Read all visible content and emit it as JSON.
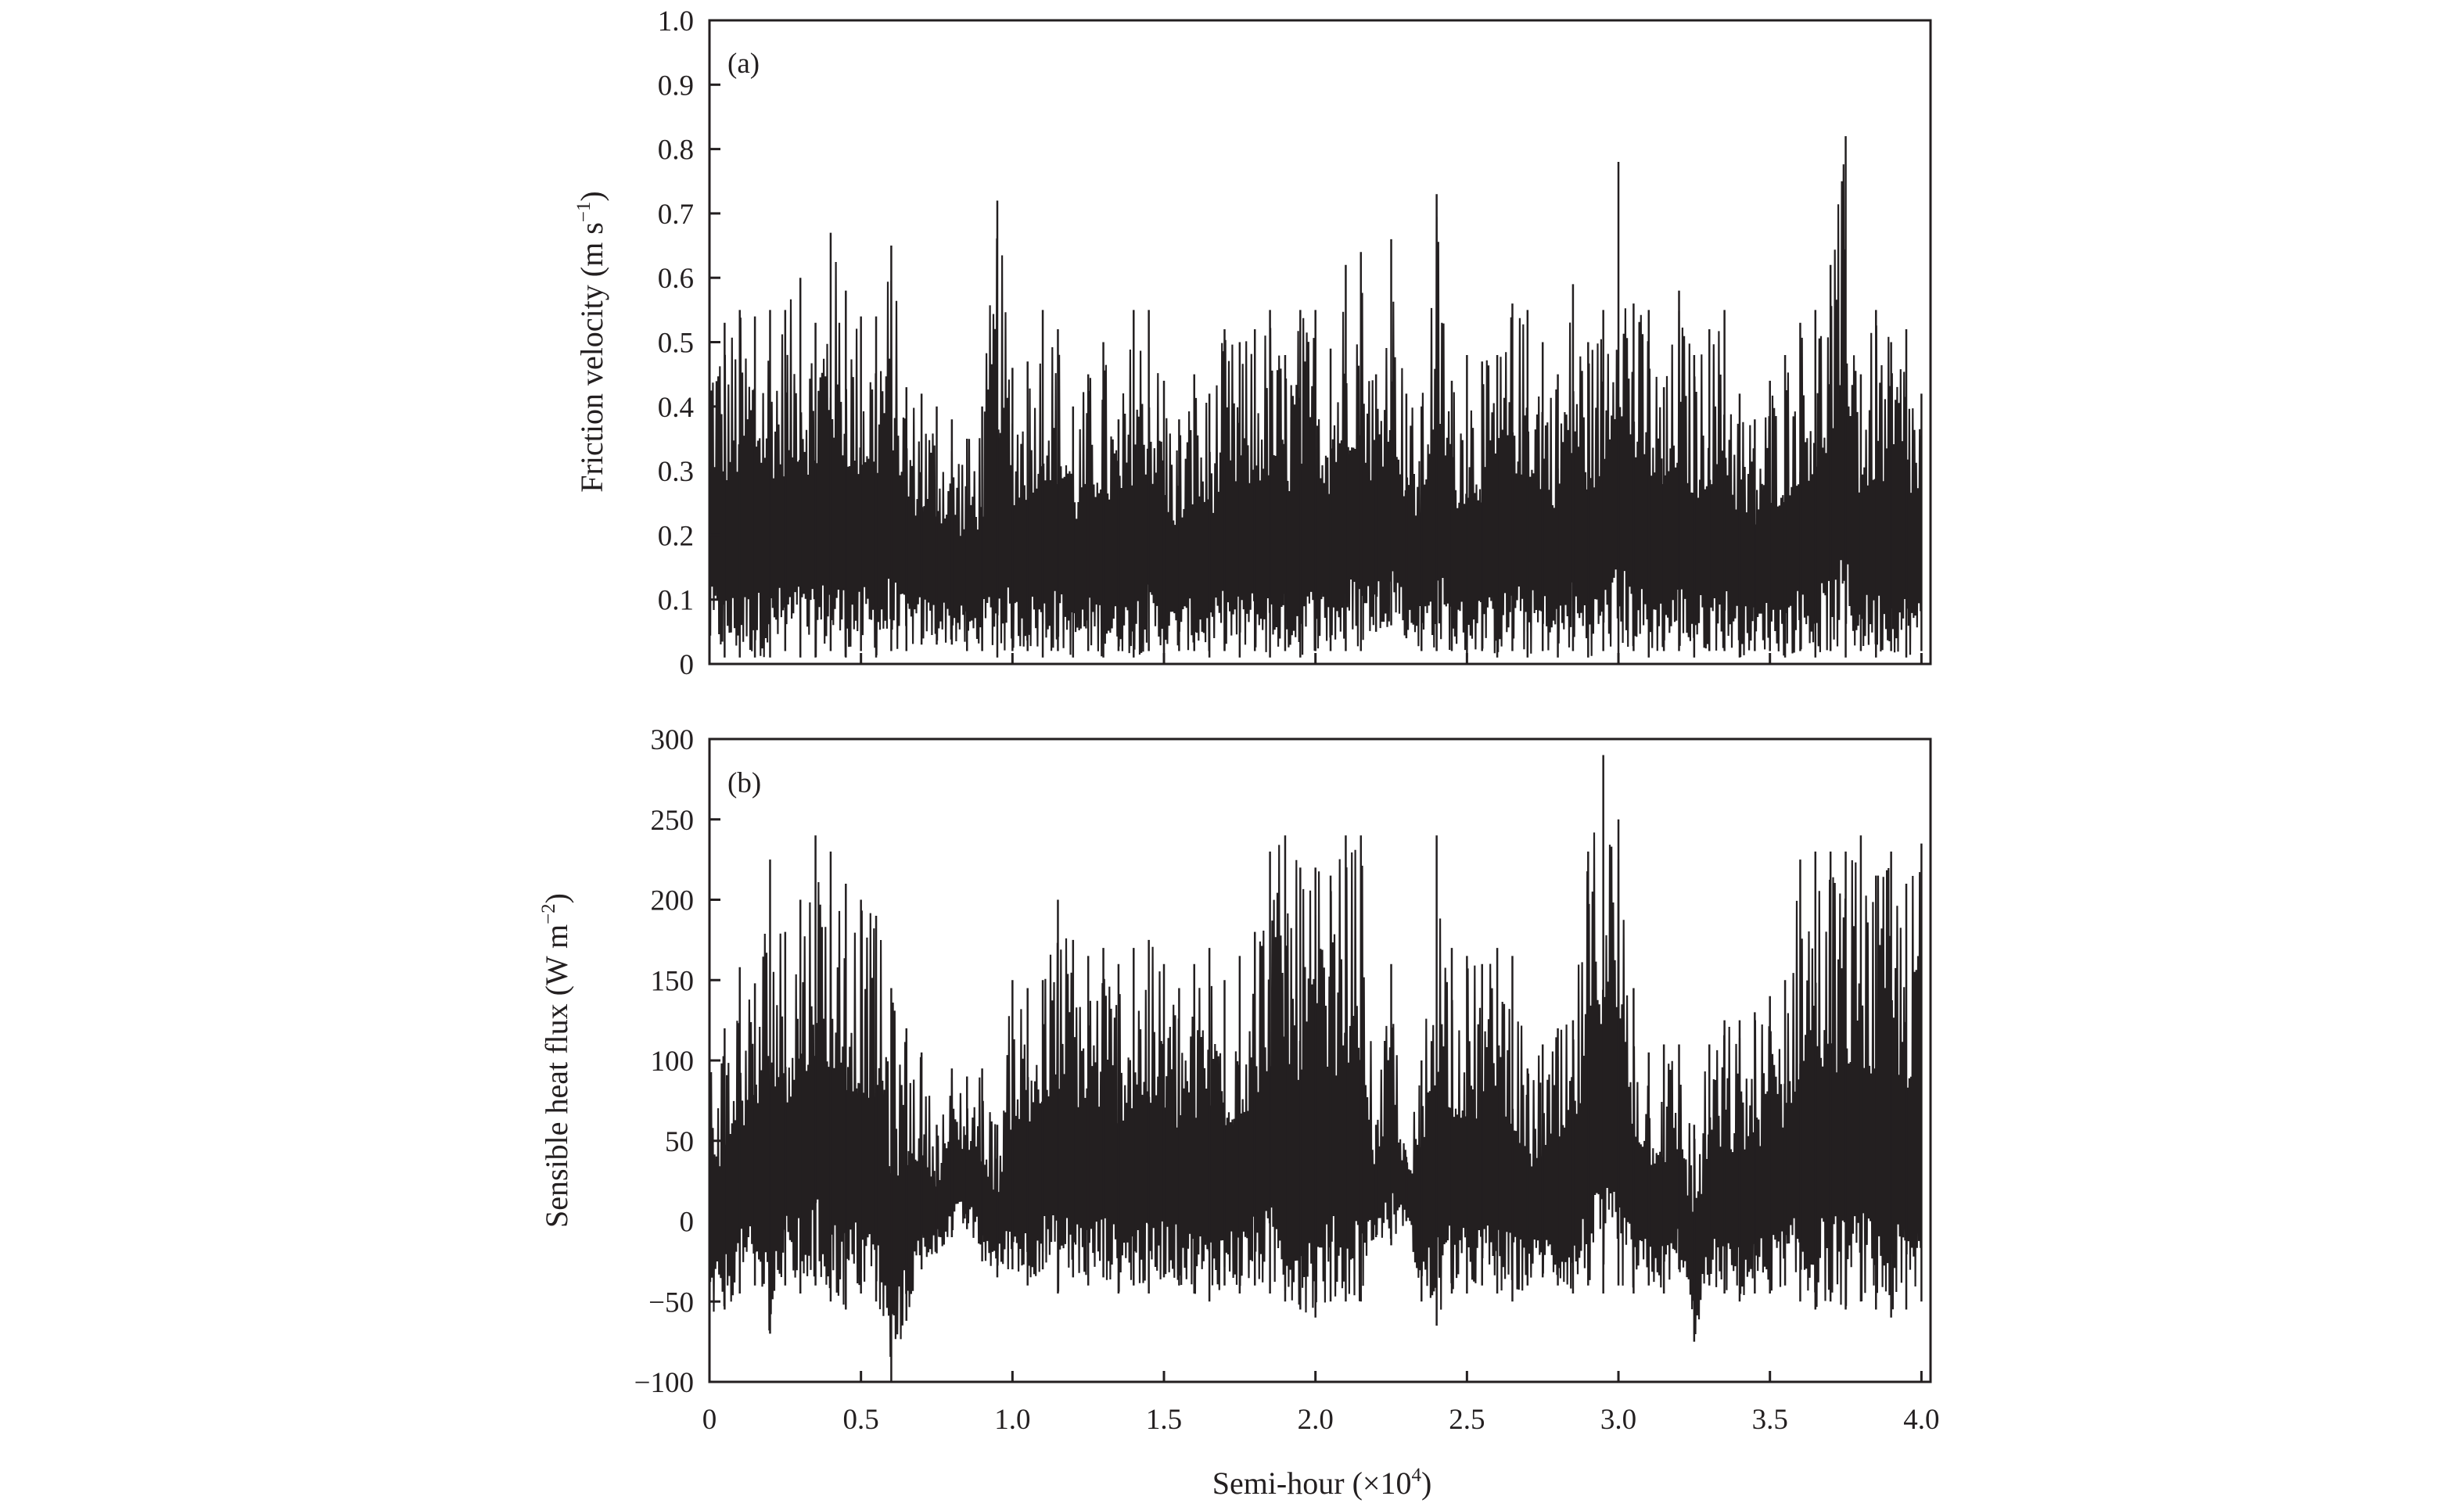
{
  "chart_data": [
    {
      "type": "line",
      "panel_label": "(a)",
      "ylabel": {
        "text": "Friction velocity (m s",
        "sup": "−1",
        "tail": ")"
      },
      "xlim": [
        0,
        4.03
      ],
      "ylim": [
        0,
        1.0
      ],
      "x_ticks": [
        0,
        0.5,
        1.0,
        1.5,
        2.0,
        2.5,
        3.0,
        3.5,
        4.0
      ],
      "y_ticks": [
        0,
        0.1,
        0.2,
        0.3,
        0.4,
        0.5,
        0.6,
        0.7,
        0.8,
        0.9,
        1.0
      ],
      "y_tick_labels": [
        "0",
        "0.1",
        "0.2",
        "0.3",
        "0.4",
        "0.5",
        "0.6",
        "0.7",
        "0.8",
        "0.9",
        "1.0"
      ],
      "series_color": "#231f20",
      "grid": false,
      "series_x": [
        0.0,
        0.05,
        0.1,
        0.15,
        0.2,
        0.25,
        0.3,
        0.35,
        0.4,
        0.45,
        0.5,
        0.55,
        0.6,
        0.65,
        0.7,
        0.75,
        0.8,
        0.85,
        0.9,
        0.95,
        1.0,
        1.05,
        1.1,
        1.15,
        1.2,
        1.25,
        1.3,
        1.35,
        1.4,
        1.45,
        1.5,
        1.55,
        1.6,
        1.65,
        1.7,
        1.75,
        1.8,
        1.85,
        1.9,
        1.95,
        2.0,
        2.05,
        2.1,
        2.15,
        2.2,
        2.25,
        2.3,
        2.35,
        2.4,
        2.45,
        2.5,
        2.55,
        2.6,
        2.65,
        2.7,
        2.75,
        2.8,
        2.85,
        2.9,
        2.95,
        3.0,
        3.05,
        3.1,
        3.15,
        3.2,
        3.25,
        3.3,
        3.35,
        3.4,
        3.45,
        3.5,
        3.55,
        3.6,
        3.65,
        3.7,
        3.75,
        3.8,
        3.85,
        3.9,
        3.95,
        4.0
      ],
      "series_high": [
        0.57,
        0.53,
        0.55,
        0.54,
        0.55,
        0.55,
        0.6,
        0.53,
        0.67,
        0.58,
        0.54,
        0.54,
        0.65,
        0.43,
        0.42,
        0.4,
        0.38,
        0.35,
        0.4,
        0.72,
        0.46,
        0.47,
        0.55,
        0.52,
        0.4,
        0.45,
        0.5,
        0.38,
        0.55,
        0.55,
        0.44,
        0.38,
        0.45,
        0.42,
        0.52,
        0.5,
        0.52,
        0.55,
        0.48,
        0.55,
        0.55,
        0.49,
        0.62,
        0.64,
        0.45,
        0.66,
        0.42,
        0.4,
        0.73,
        0.44,
        0.48,
        0.47,
        0.48,
        0.56,
        0.55,
        0.5,
        0.45,
        0.59,
        0.5,
        0.55,
        0.78,
        0.56,
        0.55,
        0.43,
        0.58,
        0.48,
        0.52,
        0.55,
        0.42,
        0.38,
        0.44,
        0.48,
        0.53,
        0.55,
        0.62,
        0.82,
        0.45,
        0.55,
        0.5,
        0.52,
        0.42
      ],
      "series_low": [
        0.01,
        0.01,
        0.01,
        0.01,
        0.01,
        0.02,
        0.01,
        0.01,
        0.02,
        0.01,
        0.02,
        0.01,
        0.02,
        0.02,
        0.03,
        0.03,
        0.03,
        0.02,
        0.02,
        0.01,
        0.02,
        0.02,
        0.01,
        0.02,
        0.01,
        0.02,
        0.01,
        0.02,
        0.01,
        0.02,
        0.01,
        0.02,
        0.02,
        0.01,
        0.02,
        0.01,
        0.02,
        0.01,
        0.02,
        0.01,
        0.02,
        0.02,
        0.02,
        0.02,
        0.05,
        0.06,
        0.04,
        0.02,
        0.02,
        0.02,
        0.01,
        0.02,
        0.01,
        0.02,
        0.01,
        0.02,
        0.01,
        0.02,
        0.01,
        0.02,
        0.01,
        0.02,
        0.01,
        0.02,
        0.02,
        0.01,
        0.02,
        0.02,
        0.01,
        0.02,
        0.02,
        0.01,
        0.02,
        0.01,
        0.02,
        0.01,
        0.02,
        0.01,
        0.02,
        0.01,
        0.02
      ]
    },
    {
      "type": "line",
      "panel_label": "(b)",
      "ylabel": {
        "text": "Sensible heat flux (W m",
        "sup": "−2",
        "tail": ")"
      },
      "xlabel": {
        "text": "Semi-hour (×10",
        "sup": "4",
        "tail": ")"
      },
      "xlim": [
        0,
        4.03
      ],
      "ylim": [
        -100,
        300
      ],
      "x_ticks": [
        0,
        0.5,
        1.0,
        1.5,
        2.0,
        2.5,
        3.0,
        3.5,
        4.0
      ],
      "x_tick_labels": [
        "0",
        "0.5",
        "1.0",
        "1.5",
        "2.0",
        "2.5",
        "3.0",
        "3.5",
        "4.0"
      ],
      "y_ticks": [
        -100,
        -50,
        0,
        50,
        100,
        150,
        200,
        250,
        300
      ],
      "y_tick_labels": [
        "−100",
        "−50",
        "0",
        "50",
        "100",
        "150",
        "200",
        "250",
        "300"
      ],
      "series_color": "#231f20",
      "grid": false,
      "series_x": [
        0.0,
        0.05,
        0.1,
        0.15,
        0.2,
        0.25,
        0.3,
        0.35,
        0.4,
        0.45,
        0.5,
        0.55,
        0.6,
        0.65,
        0.7,
        0.75,
        0.8,
        0.85,
        0.9,
        0.95,
        1.0,
        1.05,
        1.1,
        1.15,
        1.2,
        1.25,
        1.3,
        1.35,
        1.4,
        1.45,
        1.5,
        1.55,
        1.6,
        1.65,
        1.7,
        1.75,
        1.8,
        1.85,
        1.9,
        1.95,
        2.0,
        2.05,
        2.1,
        2.15,
        2.2,
        2.25,
        2.3,
        2.35,
        2.4,
        2.45,
        2.5,
        2.55,
        2.6,
        2.65,
        2.7,
        2.75,
        2.8,
        2.85,
        2.9,
        2.95,
        3.0,
        3.05,
        3.1,
        3.15,
        3.2,
        3.25,
        3.3,
        3.35,
        3.4,
        3.45,
        3.5,
        3.55,
        3.6,
        3.65,
        3.7,
        3.75,
        3.8,
        3.85,
        3.9,
        3.95,
        4.0
      ],
      "series_high": [
        130,
        120,
        158,
        148,
        225,
        180,
        200,
        240,
        230,
        210,
        200,
        190,
        145,
        120,
        105,
        60,
        95,
        90,
        95,
        60,
        150,
        145,
        150,
        200,
        175,
        165,
        170,
        160,
        170,
        175,
        160,
        145,
        160,
        170,
        150,
        165,
        180,
        230,
        240,
        220,
        220,
        215,
        240,
        240,
        60,
        160,
        40,
        100,
        240,
        170,
        165,
        160,
        170,
        165,
        95,
        110,
        120,
        125,
        230,
        290,
        250,
        145,
        105,
        110,
        110,
        60,
        110,
        125,
        125,
        130,
        140,
        150,
        225,
        230,
        230,
        230,
        240,
        215,
        230,
        210,
        235
      ],
      "series_low": [
        -70,
        -55,
        -45,
        -40,
        -70,
        -40,
        -45,
        -40,
        -50,
        -55,
        -45,
        -50,
        -100,
        -62,
        -30,
        -20,
        -10,
        -5,
        -25,
        -35,
        -30,
        -40,
        -30,
        -45,
        -35,
        -40,
        -35,
        -45,
        -40,
        -45,
        -35,
        -40,
        -45,
        -50,
        -40,
        -45,
        -40,
        -45,
        -50,
        -55,
        -60,
        -50,
        -50,
        -50,
        -10,
        -15,
        0,
        -50,
        -65,
        -45,
        -45,
        -40,
        -45,
        -50,
        -40,
        -35,
        -40,
        -45,
        -40,
        -45,
        -40,
        -45,
        -40,
        -45,
        -30,
        -75,
        -40,
        -45,
        -50,
        -45,
        -45,
        -40,
        -50,
        -55,
        -50,
        -55,
        -50,
        -55,
        -60,
        -55,
        -50
      ]
    }
  ]
}
